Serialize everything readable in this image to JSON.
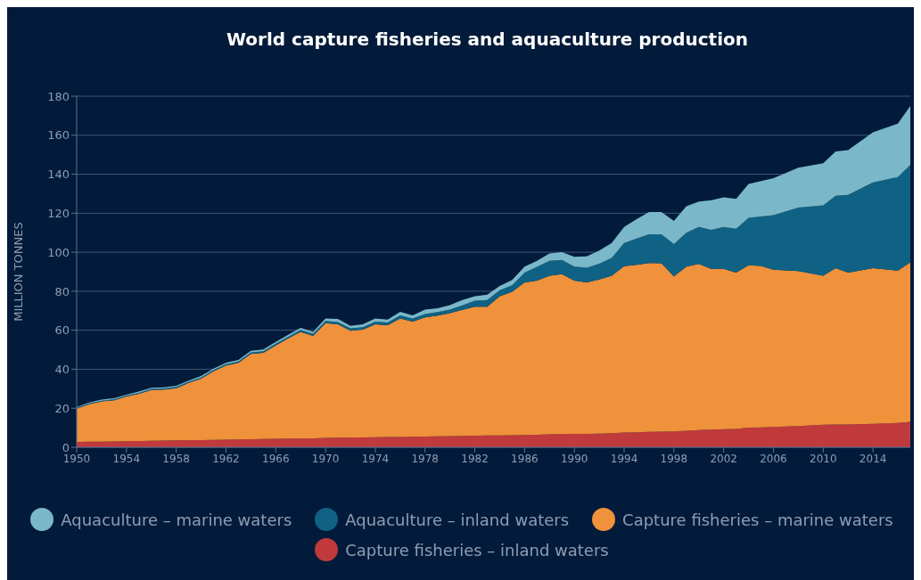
{
  "chart_data": {
    "type": "area",
    "title": "World capture fisheries and aquaculture production",
    "ylabel": "MILLION TONNES",
    "stacked": true,
    "grid": "y",
    "legend": "bottom",
    "xlim": [
      1950,
      2017
    ],
    "xticks": [
      1950,
      1954,
      1958,
      1962,
      1966,
      1970,
      1974,
      1978,
      1982,
      1986,
      1990,
      1994,
      1998,
      2002,
      2006,
      2010,
      2014
    ],
    "ylim": [
      0,
      180
    ],
    "yticks": [
      0,
      20,
      40,
      60,
      80,
      100,
      120,
      140,
      160,
      180
    ],
    "x": [
      1950,
      1951,
      1952,
      1953,
      1954,
      1955,
      1956,
      1957,
      1958,
      1959,
      1960,
      1961,
      1962,
      1963,
      1964,
      1965,
      1966,
      1967,
      1968,
      1969,
      1970,
      1971,
      1972,
      1973,
      1974,
      1975,
      1976,
      1977,
      1978,
      1979,
      1980,
      1981,
      1982,
      1983,
      1984,
      1985,
      1986,
      1987,
      1988,
      1989,
      1990,
      1991,
      1992,
      1993,
      1994,
      1995,
      1996,
      1997,
      1998,
      1999,
      2000,
      2001,
      2002,
      2003,
      2004,
      2005,
      2006,
      2008,
      2010,
      2011,
      2012,
      2014,
      2016,
      2017
    ],
    "series": [
      {
        "name": "Capture fisheries – inland waters",
        "color": "#c0393b",
        "values": [
          2.7,
          2.8,
          2.9,
          3.0,
          3.1,
          3.2,
          3.3,
          3.4,
          3.5,
          3.6,
          3.7,
          3.8,
          3.9,
          4.0,
          4.1,
          4.2,
          4.3,
          4.4,
          4.5,
          4.6,
          4.8,
          4.9,
          5.0,
          5.0,
          5.1,
          5.2,
          5.3,
          5.4,
          5.5,
          5.6,
          5.7,
          5.8,
          5.9,
          6.0,
          6.1,
          6.2,
          6.3,
          6.4,
          6.6,
          6.7,
          6.8,
          6.9,
          7.0,
          7.2,
          7.5,
          7.7,
          7.9,
          8.0,
          8.1,
          8.5,
          8.8,
          9.0,
          9.2,
          9.4,
          10.0,
          10.2,
          10.4,
          10.9,
          11.5,
          11.6,
          11.7,
          12.0,
          12.5,
          13.0
        ]
      },
      {
        "name": "Capture fisheries – marine waters",
        "color": "#f0913b",
        "values": [
          17.1,
          19.3,
          20.6,
          21.1,
          22.9,
          24.2,
          26.1,
          26.2,
          26.8,
          29.4,
          31.5,
          35.2,
          38.0,
          39.3,
          43.7,
          44.2,
          47.9,
          51.4,
          54.7,
          52.5,
          58.8,
          58.1,
          54.7,
          55.3,
          57.9,
          57.4,
          60.7,
          59.0,
          61.1,
          61.9,
          63.1,
          64.7,
          66.2,
          66.1,
          71.3,
          73.5,
          78.2,
          79.0,
          81.4,
          82.1,
          78.6,
          77.6,
          79.0,
          80.8,
          85.3,
          85.8,
          86.6,
          86.3,
          79.5,
          84.1,
          85.2,
          82.5,
          82.3,
          80.1,
          83.3,
          82.8,
          80.6,
          79.4,
          76.5,
          80.2,
          77.8,
          79.8,
          78.1,
          81.8
        ]
      },
      {
        "name": "Aquaculture – inland waters",
        "color": "#0f6284",
        "values": [
          0.4,
          0.4,
          0.4,
          0.5,
          0.5,
          0.5,
          0.5,
          0.5,
          0.6,
          0.6,
          0.6,
          0.6,
          0.7,
          0.7,
          0.8,
          0.8,
          0.9,
          0.9,
          1.0,
          1.0,
          1.2,
          1.2,
          1.3,
          1.3,
          1.4,
          1.4,
          1.6,
          1.6,
          1.7,
          1.8,
          1.8,
          2.3,
          3.1,
          3.4,
          3.1,
          3.3,
          5.0,
          7.1,
          7.6,
          7.2,
          7.2,
          7.6,
          8.1,
          9.1,
          11.9,
          13.5,
          14.7,
          14.9,
          16.6,
          17.4,
          19.0,
          20.0,
          21.5,
          22.5,
          24.3,
          25.3,
          28.0,
          32.6,
          36.0,
          37.2,
          39.9,
          44.0,
          47.9,
          50.0
        ]
      },
      {
        "name": "Aquaculture – marine waters",
        "color": "#7ab8c9",
        "values": [
          0.4,
          0.5,
          0.5,
          0.5,
          0.5,
          0.6,
          0.6,
          0.6,
          0.6,
          0.6,
          0.7,
          0.7,
          0.7,
          0.8,
          0.8,
          0.9,
          0.9,
          1.0,
          1.0,
          1.1,
          1.2,
          1.6,
          1.3,
          1.4,
          1.6,
          1.5,
          1.8,
          1.6,
          2.3,
          2.0,
          2.3,
          2.7,
          2.2,
          2.7,
          2.2,
          2.8,
          3.1,
          3.1,
          3.8,
          4.1,
          5.0,
          5.8,
          6.8,
          7.6,
          8.3,
          10.0,
          11.4,
          11.4,
          11.8,
          13.6,
          13.0,
          15.2,
          15.2,
          15.4,
          17.4,
          18.2,
          19.0,
          20.4,
          21.6,
          22.7,
          23.0,
          25.7,
          27.5,
          30.2
        ]
      }
    ]
  }
}
